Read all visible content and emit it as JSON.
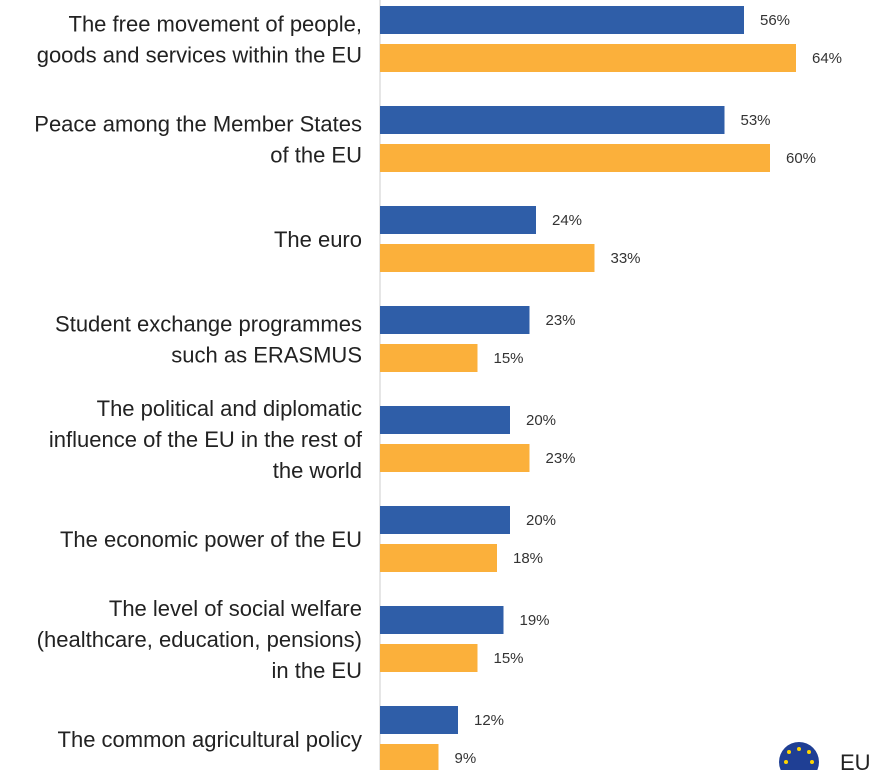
{
  "chart_data": {
    "type": "bar",
    "orientation": "horizontal",
    "categories": [
      [
        "The free movement of people,",
        "goods and services within the EU"
      ],
      [
        "Peace among the Member States",
        "of the EU"
      ],
      [
        "The euro"
      ],
      [
        "Student exchange programmes",
        "such as ERASMUS"
      ],
      [
        "The political and diplomatic",
        "influence of the EU in the rest of",
        "the world"
      ],
      [
        "The economic power of the EU"
      ],
      [
        "The level of social welfare",
        "(healthcare, education, pensions)",
        "in the EU"
      ],
      [
        "The common agricultural policy"
      ]
    ],
    "series": [
      {
        "color": "#2f5ea8",
        "values": [
          56,
          53,
          24,
          23,
          20,
          20,
          19,
          12
        ]
      },
      {
        "color": "#fbb03b",
        "values": [
          64,
          60,
          33,
          15,
          23,
          18,
          15,
          9
        ]
      }
    ],
    "value_suffix": "%",
    "xlim": [
      0,
      100
    ],
    "legend": {
      "visible_text": "EU",
      "icon": "eu-flag-icon",
      "placement": "bottom-right"
    }
  }
}
